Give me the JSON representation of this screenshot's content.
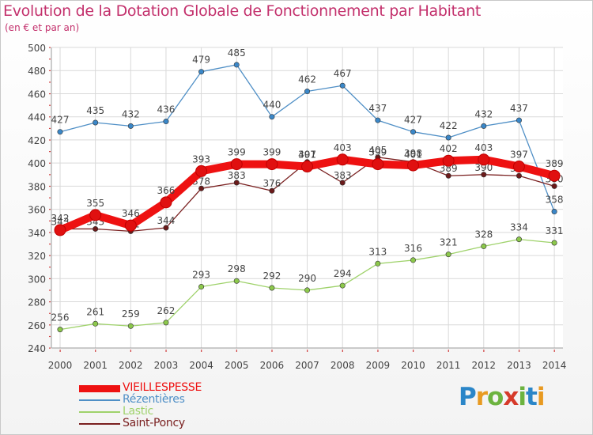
{
  "title": "Evolution de la Dotation Globale de Fonctionnement par Habitant",
  "subtitle": "(en € et par an)",
  "logo": {
    "letters": [
      {
        "ch": "P",
        "color": "#2b86c8"
      },
      {
        "ch": "r",
        "color": "#e89a21"
      },
      {
        "ch": "o",
        "color": "#6cb33f"
      },
      {
        "ch": "x",
        "color": "#d63a2a"
      },
      {
        "ch": "i",
        "color": "#6cb33f"
      },
      {
        "ch": "t",
        "color": "#2b86c8"
      },
      {
        "ch": "i",
        "color": "#e89a21"
      }
    ]
  },
  "chart_data": {
    "type": "line",
    "title": "Evolution de la Dotation Globale de Fonctionnement par Habitant",
    "subtitle": "(en € et par an)",
    "x": [
      "2000",
      "2001",
      "2002",
      "2003",
      "2004",
      "2005",
      "2006",
      "2007",
      "2008",
      "2009",
      "2010",
      "2011",
      "2012",
      "2013",
      "2014"
    ],
    "ylim": [
      240,
      500
    ],
    "yticks": [
      240,
      260,
      280,
      300,
      320,
      340,
      360,
      380,
      400,
      420,
      440,
      460,
      480,
      500
    ],
    "grid": true,
    "legend_position": "bottom-left",
    "series": [
      {
        "name": "Rézentières",
        "color": "#4f8fc6",
        "marker": "#3a87c8",
        "values": [
          427,
          435,
          432,
          436,
          479,
          485,
          440,
          462,
          467,
          437,
          427,
          422,
          432,
          437,
          358
        ],
        "labels": [
          "427",
          "435",
          "432",
          "436",
          "479",
          "485",
          "440",
          "462",
          "467",
          "437",
          "427",
          "422",
          "432",
          "437",
          "358"
        ]
      },
      {
        "name": "Lastic",
        "color": "#9fd26b",
        "marker": "#8cc84b",
        "values": [
          256,
          261,
          259,
          262,
          293,
          298,
          292,
          290,
          294,
          313,
          316,
          321,
          328,
          334,
          331
        ],
        "labels": [
          "256",
          "261",
          "259",
          "262",
          "293",
          "298",
          "292",
          "290",
          "294",
          "313",
          "316",
          "321",
          "328",
          "334",
          "331"
        ]
      },
      {
        "name": "Saint-Poncy",
        "color": "#7a2020",
        "marker": "#6b1a1a",
        "values": [
          343,
          343,
          341,
          344,
          378,
          383,
          376,
          401,
          383,
          405,
          401,
          389,
          390,
          389,
          380
        ],
        "labels": [
          "343",
          "343",
          "341",
          "344",
          "378",
          "383",
          "376",
          "401",
          "383",
          "405",
          "401",
          "389",
          "390",
          "389",
          "380"
        ]
      },
      {
        "name": "VIEILLESPESSE",
        "color": "#ee1111",
        "marker": "#e01010",
        "bold": true,
        "values": [
          342,
          355,
          346,
          366,
          393,
          399,
          399,
          397,
          403,
          399,
          398,
          402,
          403,
          397,
          389
        ],
        "labels": [
          "342",
          "355",
          "346",
          "366",
          "393",
          "399",
          "399",
          "397",
          "403",
          "399",
          "398",
          "402",
          "403",
          "397",
          "389"
        ]
      }
    ],
    "legend": [
      {
        "name": "VIEILLESPESSE",
        "color": "#ee1111"
      },
      {
        "name": "Rézentières",
        "color": "#4f8fc6"
      },
      {
        "name": "Lastic",
        "color": "#9fd26b"
      },
      {
        "name": "Saint-Poncy",
        "color": "#7a2020"
      }
    ]
  }
}
